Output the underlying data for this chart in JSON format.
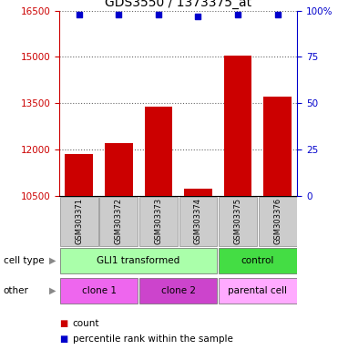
{
  "title": "GDS3550 / 1373375_at",
  "samples": [
    "GSM303371",
    "GSM303372",
    "GSM303373",
    "GSM303374",
    "GSM303375",
    "GSM303376"
  ],
  "bar_values": [
    11850,
    12200,
    13400,
    10750,
    15050,
    13700
  ],
  "percentile_values": [
    98,
    98,
    98,
    97,
    98,
    98
  ],
  "ylim_left": [
    10500,
    16500
  ],
  "ylim_right": [
    0,
    100
  ],
  "yticks_left": [
    10500,
    12000,
    13500,
    15000,
    16500
  ],
  "yticks_right": [
    0,
    25,
    50,
    75,
    100
  ],
  "ytick_right_labels": [
    "0",
    "25",
    "50",
    "75",
    "100%"
  ],
  "bar_color": "#cc0000",
  "dot_color": "#0000cc",
  "bar_width": 0.7,
  "cell_type_gli1_color": "#aaffaa",
  "cell_type_control_color": "#44dd44",
  "other_clone1_color": "#ee66ee",
  "other_clone2_color": "#cc44cc",
  "other_parental_color": "#ffaaff",
  "sample_box_color": "#cccccc",
  "row_label_cell_type": "cell type",
  "row_label_other": "other",
  "legend_count_color": "#cc0000",
  "legend_dot_color": "#0000cc",
  "legend_count_text": "count",
  "legend_percentile_text": "percentile rank within the sample",
  "background_color": "#ffffff",
  "title_fontsize": 10,
  "tick_fontsize": 7.5,
  "label_fontsize": 7.5,
  "annotation_fontsize": 7.5
}
